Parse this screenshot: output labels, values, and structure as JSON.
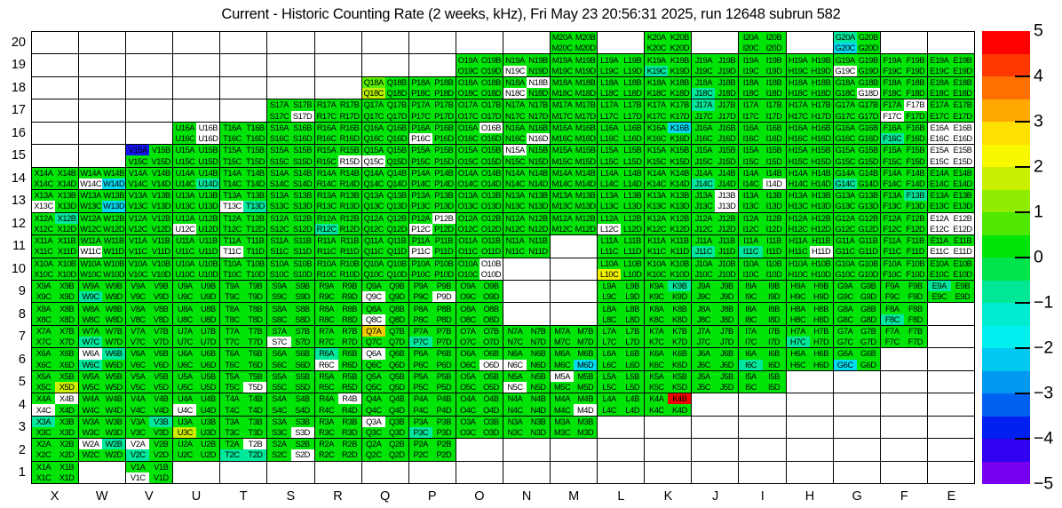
{
  "title": "Current - Historic Counting Rate (2 weeks, kHz), Fri May 23 20:56:31 2025, run 12648 subrun 582",
  "chart_data": {
    "type": "heatmap",
    "title": "Current - Historic Counting Rate (2 weeks, kHz), Fri May 23 20:56:31 2025, run 12648 subrun 582",
    "x_categories": [
      "X",
      "W",
      "V",
      "U",
      "T",
      "S",
      "R",
      "Q",
      "P",
      "O",
      "N",
      "M",
      "L",
      "K",
      "J",
      "I",
      "H",
      "G",
      "F",
      "E"
    ],
    "y_categories": [
      "20",
      "19",
      "18",
      "17",
      "16",
      "15",
      "14",
      "13",
      "12",
      "11",
      "10",
      "9",
      "8",
      "7",
      "6",
      "5",
      "4",
      "3",
      "2",
      "1"
    ],
    "subcell_suffixes": [
      "A",
      "B",
      "C",
      "D"
    ],
    "label_pattern": "{column}{row}{suffix}  (A,B = top pair, C,D = bottom pair of each module cell)",
    "grid_on": true,
    "legend_position": "right-colorbar",
    "colorbar": {
      "min": -5,
      "max": 5,
      "tick_labels": [
        "5",
        "4",
        "3",
        "2",
        "1",
        "0",
        "−1",
        "−2",
        "−3",
        "−4",
        "−5"
      ],
      "tick_values": [
        5,
        4,
        3,
        2,
        1,
        0,
        -1,
        -2,
        -3,
        -4,
        -5
      ],
      "band_colors": [
        "#ff0000",
        "#ff3800",
        "#ff7000",
        "#ffa800",
        "#ffe000",
        "#f8f800",
        "#c8f000",
        "#90ec00",
        "#50e800",
        "#00e408",
        "#00e44c",
        "#00e896",
        "#00ecd0",
        "#00f0f0",
        "#00c8f0",
        "#0098f0",
        "#0060f0",
        "#0020f0",
        "#3000f0",
        "#7800f0"
      ]
    },
    "palette": {
      "green": "#00e408",
      "white": "#ffffff",
      "teal": "#00e89c",
      "cyan": "#00dcf0",
      "blue": "#1414f0",
      "lightgreen": "#58f000",
      "chartreuse": "#b8f000",
      "yellowgreen": "#ccf000",
      "yellow": "#f0f000",
      "gold": "#f0cc00",
      "red": "#f80000"
    },
    "default_subcell_color": "green",
    "present_columns_by_row": {
      "20": [
        "M",
        "K",
        "I",
        "G"
      ],
      "19": [
        "O",
        "N",
        "M",
        "L",
        "K",
        "J",
        "I",
        "H",
        "G",
        "F",
        "E"
      ],
      "18": [
        "Q",
        "P",
        "O",
        "N",
        "M",
        "L",
        "K",
        "J",
        "I",
        "H",
        "G",
        "F",
        "E"
      ],
      "17": [
        "S",
        "R",
        "Q",
        "P",
        "O",
        "N",
        "M",
        "L",
        "K",
        "J",
        "I",
        "H",
        "G",
        "F",
        "E"
      ],
      "16": [
        "U",
        "T",
        "S",
        "R",
        "Q",
        "P",
        "O",
        "N",
        "M",
        "L",
        "K",
        "J",
        "I",
        "H",
        "G",
        "F",
        "E"
      ],
      "15": [
        "V",
        "U",
        "T",
        "S",
        "R",
        "Q",
        "P",
        "O",
        "N",
        "M",
        "L",
        "K",
        "J",
        "I",
        "H",
        "G",
        "F",
        "E"
      ],
      "14": [
        "X",
        "W",
        "V",
        "U",
        "T",
        "S",
        "R",
        "Q",
        "P",
        "O",
        "N",
        "M",
        "L",
        "K",
        "J",
        "I",
        "H",
        "G",
        "F",
        "E"
      ],
      "13": [
        "X",
        "W",
        "V",
        "U",
        "T",
        "S",
        "R",
        "Q",
        "P",
        "O",
        "N",
        "M",
        "L",
        "K",
        "J",
        "I",
        "H",
        "G",
        "F",
        "E"
      ],
      "12": [
        "X",
        "W",
        "V",
        "U",
        "T",
        "S",
        "R",
        "Q",
        "P",
        "O",
        "N",
        "M",
        "L",
        "K",
        "J",
        "I",
        "H",
        "G",
        "F",
        "E"
      ],
      "11": [
        "X",
        "W",
        "V",
        "U",
        "T",
        "S",
        "R",
        "Q",
        "P",
        "O",
        "N",
        "L",
        "K",
        "J",
        "I",
        "H",
        "G",
        "F",
        "E"
      ],
      "10": [
        "X",
        "W",
        "V",
        "U",
        "T",
        "S",
        "R",
        "Q",
        "P",
        "O",
        "L",
        "K",
        "J",
        "I",
        "H",
        "G",
        "F",
        "E"
      ],
      "9": [
        "X",
        "W",
        "V",
        "U",
        "T",
        "S",
        "R",
        "Q",
        "P",
        "O",
        "L",
        "K",
        "J",
        "I",
        "H",
        "G",
        "F",
        "E"
      ],
      "8": [
        "X",
        "W",
        "V",
        "U",
        "T",
        "S",
        "R",
        "Q",
        "P",
        "O",
        "L",
        "K",
        "J",
        "I",
        "H",
        "G",
        "F"
      ],
      "7": [
        "X",
        "W",
        "V",
        "U",
        "T",
        "S",
        "R",
        "Q",
        "P",
        "O",
        "N",
        "M",
        "L",
        "K",
        "J",
        "I",
        "H",
        "G",
        "F"
      ],
      "6": [
        "X",
        "W",
        "V",
        "U",
        "T",
        "S",
        "R",
        "Q",
        "P",
        "O",
        "N",
        "M",
        "L",
        "K",
        "J",
        "I",
        "H",
        "G"
      ],
      "5": [
        "X",
        "W",
        "V",
        "U",
        "T",
        "S",
        "R",
        "Q",
        "P",
        "O",
        "N",
        "M",
        "L",
        "K",
        "J",
        "I"
      ],
      "4": [
        "X",
        "W",
        "V",
        "U",
        "T",
        "S",
        "R",
        "Q",
        "P",
        "O",
        "N",
        "M",
        "L",
        "K"
      ],
      "3": [
        "X",
        "W",
        "V",
        "U",
        "T",
        "S",
        "R",
        "Q",
        "P",
        "O",
        "N",
        "M"
      ],
      "2": [
        "X",
        "W",
        "V",
        "U",
        "T",
        "S",
        "R",
        "Q",
        "P"
      ],
      "1": [
        "X",
        "V"
      ]
    },
    "special_subcells": {
      "G20A": "teal",
      "G20C": "cyan",
      "K19C": "teal",
      "N19C": "white",
      "G19C": "white",
      "Q18A": "lightgreen",
      "Q18C": "chartreuse",
      "N18B": "white",
      "N18C": "white",
      "J18C": "teal",
      "G18D": "white",
      "S17D": "white",
      "J17A": "teal",
      "F17B": "white",
      "F17C": "white",
      "U16B": "white",
      "U16D": "white",
      "P16C": "white",
      "O16B": "white",
      "N16D": "white",
      "K16B": "cyan",
      "F16C": "teal",
      "E16A": "white",
      "E16B": "white",
      "E16C": "white",
      "E16D": "white",
      "V15A": "blue",
      "R15D": "white",
      "Q15C": "white",
      "N15A": "white",
      "E15A": "white",
      "E15B": "white",
      "E15C": "white",
      "E15D": "white",
      "W14C": "white",
      "W14D": "cyan",
      "U14D": "teal",
      "J14C": "teal",
      "I14D": "white",
      "G14C": "teal",
      "X13C": "white",
      "W13D": "cyan",
      "T13C": "white",
      "T13D": "teal",
      "J13B": "white",
      "J13D": "white",
      "F13B": "teal",
      "X12B": "teal",
      "U12C": "white",
      "R12C": "teal",
      "P12B": "white",
      "P12C": "white",
      "L12C": "white",
      "E12A": "white",
      "E12B": "white",
      "E12C": "white",
      "E12D": "white",
      "W11C": "white",
      "T11C": "white",
      "P11C": "white",
      "J11C": "teal",
      "I11C": "teal",
      "H11D": "white",
      "E11C": "white",
      "E11D": "white",
      "O10B": "white",
      "O10D": "white",
      "L10C": "yellow",
      "W9C": "teal",
      "Q9C": "white",
      "P9D": "white",
      "K9B": "teal",
      "E9A": "teal",
      "Q8C": "white",
      "F8C": "teal",
      "W7C": "teal",
      "S7C": "white",
      "Q7A": "gold",
      "P7C": "teal",
      "H7C": "teal",
      "W6A": "white",
      "W6B": "teal",
      "W6C": "teal",
      "R6A": "teal",
      "R6C": "white",
      "Q6A": "white",
      "O6D": "white",
      "N6C": "white",
      "M6D": "cyan",
      "I6C": "teal",
      "G6C": "cyan",
      "X5D": "yellowgreen",
      "T5D": "white",
      "N5C": "white",
      "M5A": "white",
      "X4B": "white",
      "X4C": "white",
      "U4C": "white",
      "R4B": "white",
      "M4D": "white",
      "K4B": "red",
      "X3A": "teal",
      "V3B": "teal",
      "U3C": "yellowgreen",
      "S3D": "white",
      "Q3A": "white",
      "P3C": "teal",
      "W2A": "white",
      "W2B": "teal",
      "V2A": "white",
      "V2C": "teal",
      "T2B": "white",
      "T2C": "teal",
      "T2D": "teal",
      "S2D": "white",
      "V1C": "white"
    }
  },
  "axes": {
    "x_labels": [
      "X",
      "W",
      "V",
      "U",
      "T",
      "S",
      "R",
      "Q",
      "P",
      "O",
      "N",
      "M",
      "L",
      "K",
      "J",
      "I",
      "H",
      "G",
      "F",
      "E"
    ],
    "y_labels": [
      "20",
      "19",
      "18",
      "17",
      "16",
      "15",
      "14",
      "13",
      "12",
      "11",
      "10",
      "9",
      "8",
      "7",
      "6",
      "5",
      "4",
      "3",
      "2",
      "1"
    ]
  }
}
